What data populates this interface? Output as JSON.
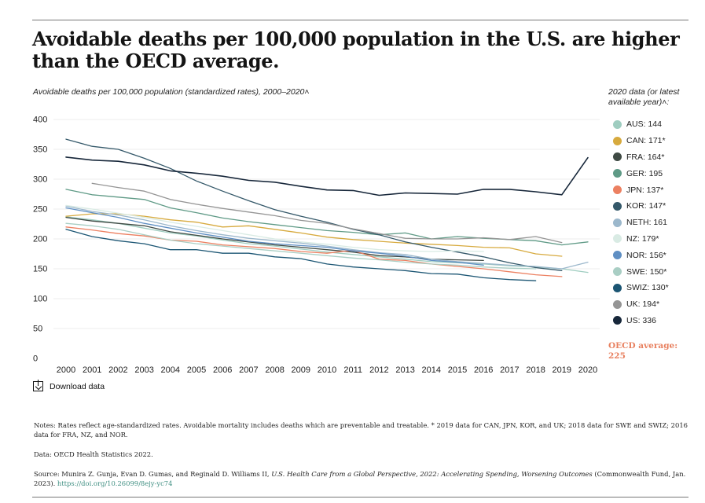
{
  "title": "Avoidable deaths per 100,000 population in the U.S. are higher than the OECD average.",
  "subtitle": "Avoidable deaths per 100,000 population (standardized rates), 2000–2020˄",
  "legend_title": "2020 data (or latest available year)˄:",
  "oecd_average": "OECD average: 225",
  "download_label": "Download data",
  "notes": "Notes: Rates reflect age-standardized rates. Avoidable mortality includes deaths which are preventable and treatable. * 2019 data for CAN, JPN, KOR, and UK; 2018 data for SWE and SWIZ; 2016 data for FRA, NZ, and NOR.",
  "data_note": "Data: OECD Health Statistics 2022.",
  "source_prefix": "Source: Munira Z. Gunja, Evan D. Gumas, and Reginald D. Williams II,",
  "source_title": "U.S. Health Care from a Global Perspective, 2022: Accelerating Spending, Worsening Outcomes",
  "source_suffix": "(Commonwealth Fund, Jan. 2023).",
  "source_link": "https://doi.org/10.26099/8ejy-yc74",
  "chart_data": {
    "type": "line",
    "x": [
      2000,
      2001,
      2002,
      2003,
      2004,
      2005,
      2006,
      2007,
      2008,
      2009,
      2010,
      2011,
      2012,
      2013,
      2014,
      2015,
      2016,
      2017,
      2018,
      2019,
      2020
    ],
    "y_ticks": [
      0,
      50,
      100,
      150,
      200,
      250,
      300,
      350,
      400
    ],
    "ylim": [
      0,
      400
    ],
    "grid": true,
    "legend_position": "right",
    "series": [
      {
        "name": "AUS: 144",
        "color": "#9fcdc0",
        "values": [
          237,
          232,
          226,
          218,
          210,
          205,
          198,
          192,
          188,
          183,
          178,
          174,
          170,
          166,
          162,
          160,
          158,
          155,
          153,
          150,
          144
        ]
      },
      {
        "name": "CAN: 171*",
        "color": "#d7aa3e",
        "values": [
          238,
          242,
          242,
          238,
          232,
          228,
          220,
          222,
          216,
          210,
          203,
          199,
          196,
          193,
          191,
          189,
          186,
          185,
          175,
          171,
          null
        ]
      },
      {
        "name": "FRA: 164*",
        "color": "#3f4a44",
        "values": [
          236,
          230,
          226,
          222,
          212,
          206,
          200,
          195,
          190,
          186,
          182,
          178,
          172,
          170,
          166,
          165,
          164,
          null,
          null,
          null,
          null
        ]
      },
      {
        "name": "GER: 195",
        "color": "#5f9a86",
        "values": [
          283,
          274,
          270,
          266,
          252,
          244,
          235,
          229,
          224,
          219,
          214,
          211,
          207,
          210,
          200,
          204,
          201,
          199,
          197,
          190,
          195
        ]
      },
      {
        "name": "JPN: 137*",
        "color": "#ec8061",
        "values": [
          220,
          215,
          209,
          205,
          198,
          196,
          190,
          187,
          184,
          179,
          176,
          181,
          166,
          164,
          158,
          154,
          150,
          145,
          140,
          137,
          null
        ]
      },
      {
        "name": "KOR: 147*",
        "color": "#35596a",
        "values": [
          367,
          355,
          350,
          335,
          318,
          297,
          280,
          264,
          249,
          238,
          228,
          216,
          207,
          195,
          186,
          178,
          170,
          160,
          152,
          147,
          null
        ]
      },
      {
        "name": "NETH: 161",
        "color": "#9cb8cc",
        "values": [
          255,
          246,
          240,
          232,
          222,
          214,
          207,
          201,
          197,
          193,
          188,
          182,
          177,
          174,
          166,
          162,
          159,
          156,
          154,
          150,
          161
        ]
      },
      {
        "name": "NZ: 179*",
        "color": "#d9ebe4",
        "values": [
          256,
          250,
          243,
          236,
          228,
          221,
          214,
          207,
          200,
          195,
          191,
          186,
          182,
          180,
          179,
          180,
          179,
          null,
          null,
          null,
          null
        ]
      },
      {
        "name": "NOR: 156*",
        "color": "#5f8fc3",
        "values": [
          252,
          244,
          236,
          226,
          218,
          210,
          203,
          196,
          192,
          189,
          186,
          180,
          176,
          171,
          164,
          161,
          156,
          null,
          null,
          null,
          null
        ]
      },
      {
        "name": "SWE: 150*",
        "color": "#a9cec4",
        "values": [
          226,
          222,
          216,
          207,
          198,
          192,
          188,
          184,
          180,
          176,
          172,
          168,
          165,
          161,
          158,
          156,
          153,
          151,
          150,
          null,
          null
        ]
      },
      {
        "name": "SWIZ: 130*",
        "color": "#1b5573",
        "values": [
          216,
          204,
          197,
          192,
          182,
          182,
          176,
          176,
          170,
          167,
          158,
          153,
          150,
          147,
          142,
          141,
          135,
          132,
          130,
          null,
          null
        ]
      },
      {
        "name": "UK: 194*",
        "color": "#959595",
        "values": [
          null,
          293,
          286,
          280,
          266,
          258,
          251,
          245,
          239,
          231,
          226,
          217,
          209,
          201,
          200,
          200,
          202,
          199,
          204,
          194,
          null
        ]
      },
      {
        "name": "US: 336",
        "color": "#17273a",
        "values": [
          337,
          332,
          330,
          324,
          314,
          310,
          305,
          298,
          295,
          288,
          282,
          281,
          273,
          277,
          276,
          275,
          283,
          283,
          279,
          274,
          336
        ]
      }
    ]
  }
}
